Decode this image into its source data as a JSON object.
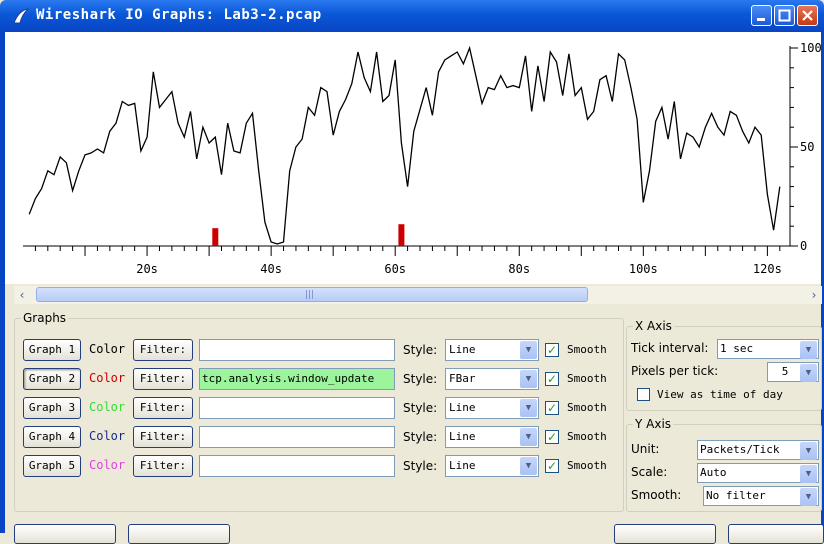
{
  "window": {
    "title": "Wireshark IO Graphs: Lab3-2.pcap",
    "accent_color": "#0a57d6",
    "icons": [
      "wireshark-fin-icon",
      "minimize-icon",
      "maximize-icon",
      "close-icon"
    ]
  },
  "chart_data": {
    "type": "line",
    "x_tick_labels": [
      "20s",
      "40s",
      "60s",
      "80s",
      "100s",
      "120s"
    ],
    "y_tick_labels": [
      "100",
      "50",
      "0"
    ],
    "ylim": [
      0,
      100
    ],
    "xlim": [
      0,
      123
    ],
    "grid": false,
    "series": [
      {
        "style": "Line",
        "color": "#000000",
        "x": [
          1,
          2,
          3,
          4,
          5,
          6,
          7,
          8,
          9,
          10,
          11,
          12,
          13,
          14,
          15,
          16,
          17,
          18,
          19,
          20,
          21,
          22,
          23,
          24,
          25,
          26,
          27,
          28,
          29,
          30,
          31,
          32,
          33,
          34,
          35,
          36,
          37,
          38,
          39,
          40,
          41,
          42,
          43,
          44,
          45,
          46,
          47,
          48,
          49,
          50,
          51,
          52,
          53,
          54,
          55,
          56,
          57,
          58,
          59,
          60,
          61,
          62,
          63,
          64,
          65,
          66,
          67,
          68,
          69,
          70,
          71,
          72,
          73,
          74,
          75,
          76,
          77,
          78,
          79,
          80,
          81,
          82,
          83,
          84,
          85,
          86,
          87,
          88,
          89,
          90,
          91,
          92,
          93,
          94,
          95,
          96,
          97,
          98,
          99,
          100,
          101,
          102,
          103,
          104,
          105,
          106,
          107,
          108,
          109,
          110,
          111,
          112,
          113,
          114,
          115,
          116,
          117,
          118,
          119,
          120,
          121,
          122
        ],
        "values": [
          16,
          24,
          29,
          38,
          36,
          45,
          42,
          28,
          38,
          46,
          47,
          49,
          47,
          58,
          62,
          73,
          71,
          72,
          48,
          55,
          88,
          70,
          74,
          78,
          62,
          55,
          68,
          44,
          60,
          52,
          55,
          36,
          62,
          48,
          47,
          62,
          67,
          38,
          12,
          2,
          1,
          2,
          38,
          50,
          54,
          70,
          66,
          80,
          78,
          56,
          68,
          74,
          82,
          98,
          85,
          78,
          98,
          73,
          76,
          94,
          52,
          30,
          58,
          69,
          80,
          66,
          88,
          94,
          96,
          98,
          92,
          100,
          86,
          72,
          80,
          79,
          86,
          80,
          81,
          80,
          96,
          68,
          91,
          73,
          98,
          93,
          76,
          97,
          76,
          80,
          64,
          68,
          84,
          86,
          73,
          97,
          94,
          80,
          64,
          22,
          38,
          63,
          70,
          54,
          73,
          44,
          57,
          55,
          50,
          60,
          67,
          60,
          56,
          68,
          66,
          58,
          52,
          60,
          56,
          26,
          8,
          30
        ]
      },
      {
        "style": "FBar",
        "color": "#cc0000",
        "x": [
          31,
          61
        ],
        "values": [
          9,
          11
        ]
      }
    ]
  },
  "scrollbar": {
    "left_arrow": "‹",
    "right_arrow": "›",
    "grip": "|||"
  },
  "graphs": {
    "legend": "Graphs",
    "color_word": "Color",
    "filter_button": "Filter:",
    "style_label": "Style:",
    "smooth_label": "Smooth",
    "rows": [
      {
        "button": "Graph 1",
        "color": "#000000",
        "filter": "",
        "style": "Line",
        "smooth": "✓"
      },
      {
        "button": "Graph 2",
        "color": "#cc0000",
        "filter": "tcp.analysis.window_update",
        "style": "FBar",
        "smooth": "✓"
      },
      {
        "button": "Graph 3",
        "color": "#33dd33",
        "filter": "",
        "style": "Line",
        "smooth": "✓"
      },
      {
        "button": "Graph 4",
        "color": "#1a2a8c",
        "filter": "",
        "style": "Line",
        "smooth": "✓"
      },
      {
        "button": "Graph 5",
        "color": "#e040e0",
        "filter": "",
        "style": "Line",
        "smooth": "✓"
      }
    ]
  },
  "x_axis": {
    "legend": "X Axis",
    "tick_interval_label": "Tick interval:",
    "tick_interval_value": "1 sec",
    "pixels_per_tick_label": "Pixels per tick:",
    "pixels_per_tick_value": "5",
    "view_time_label": "View as time of day"
  },
  "y_axis": {
    "legend": "Y Axis",
    "unit_label": "Unit:",
    "unit_value": "Packets/Tick",
    "scale_label": "Scale:",
    "scale_value": "Auto",
    "smooth_label": "Smooth:",
    "smooth_value": "No filter"
  }
}
